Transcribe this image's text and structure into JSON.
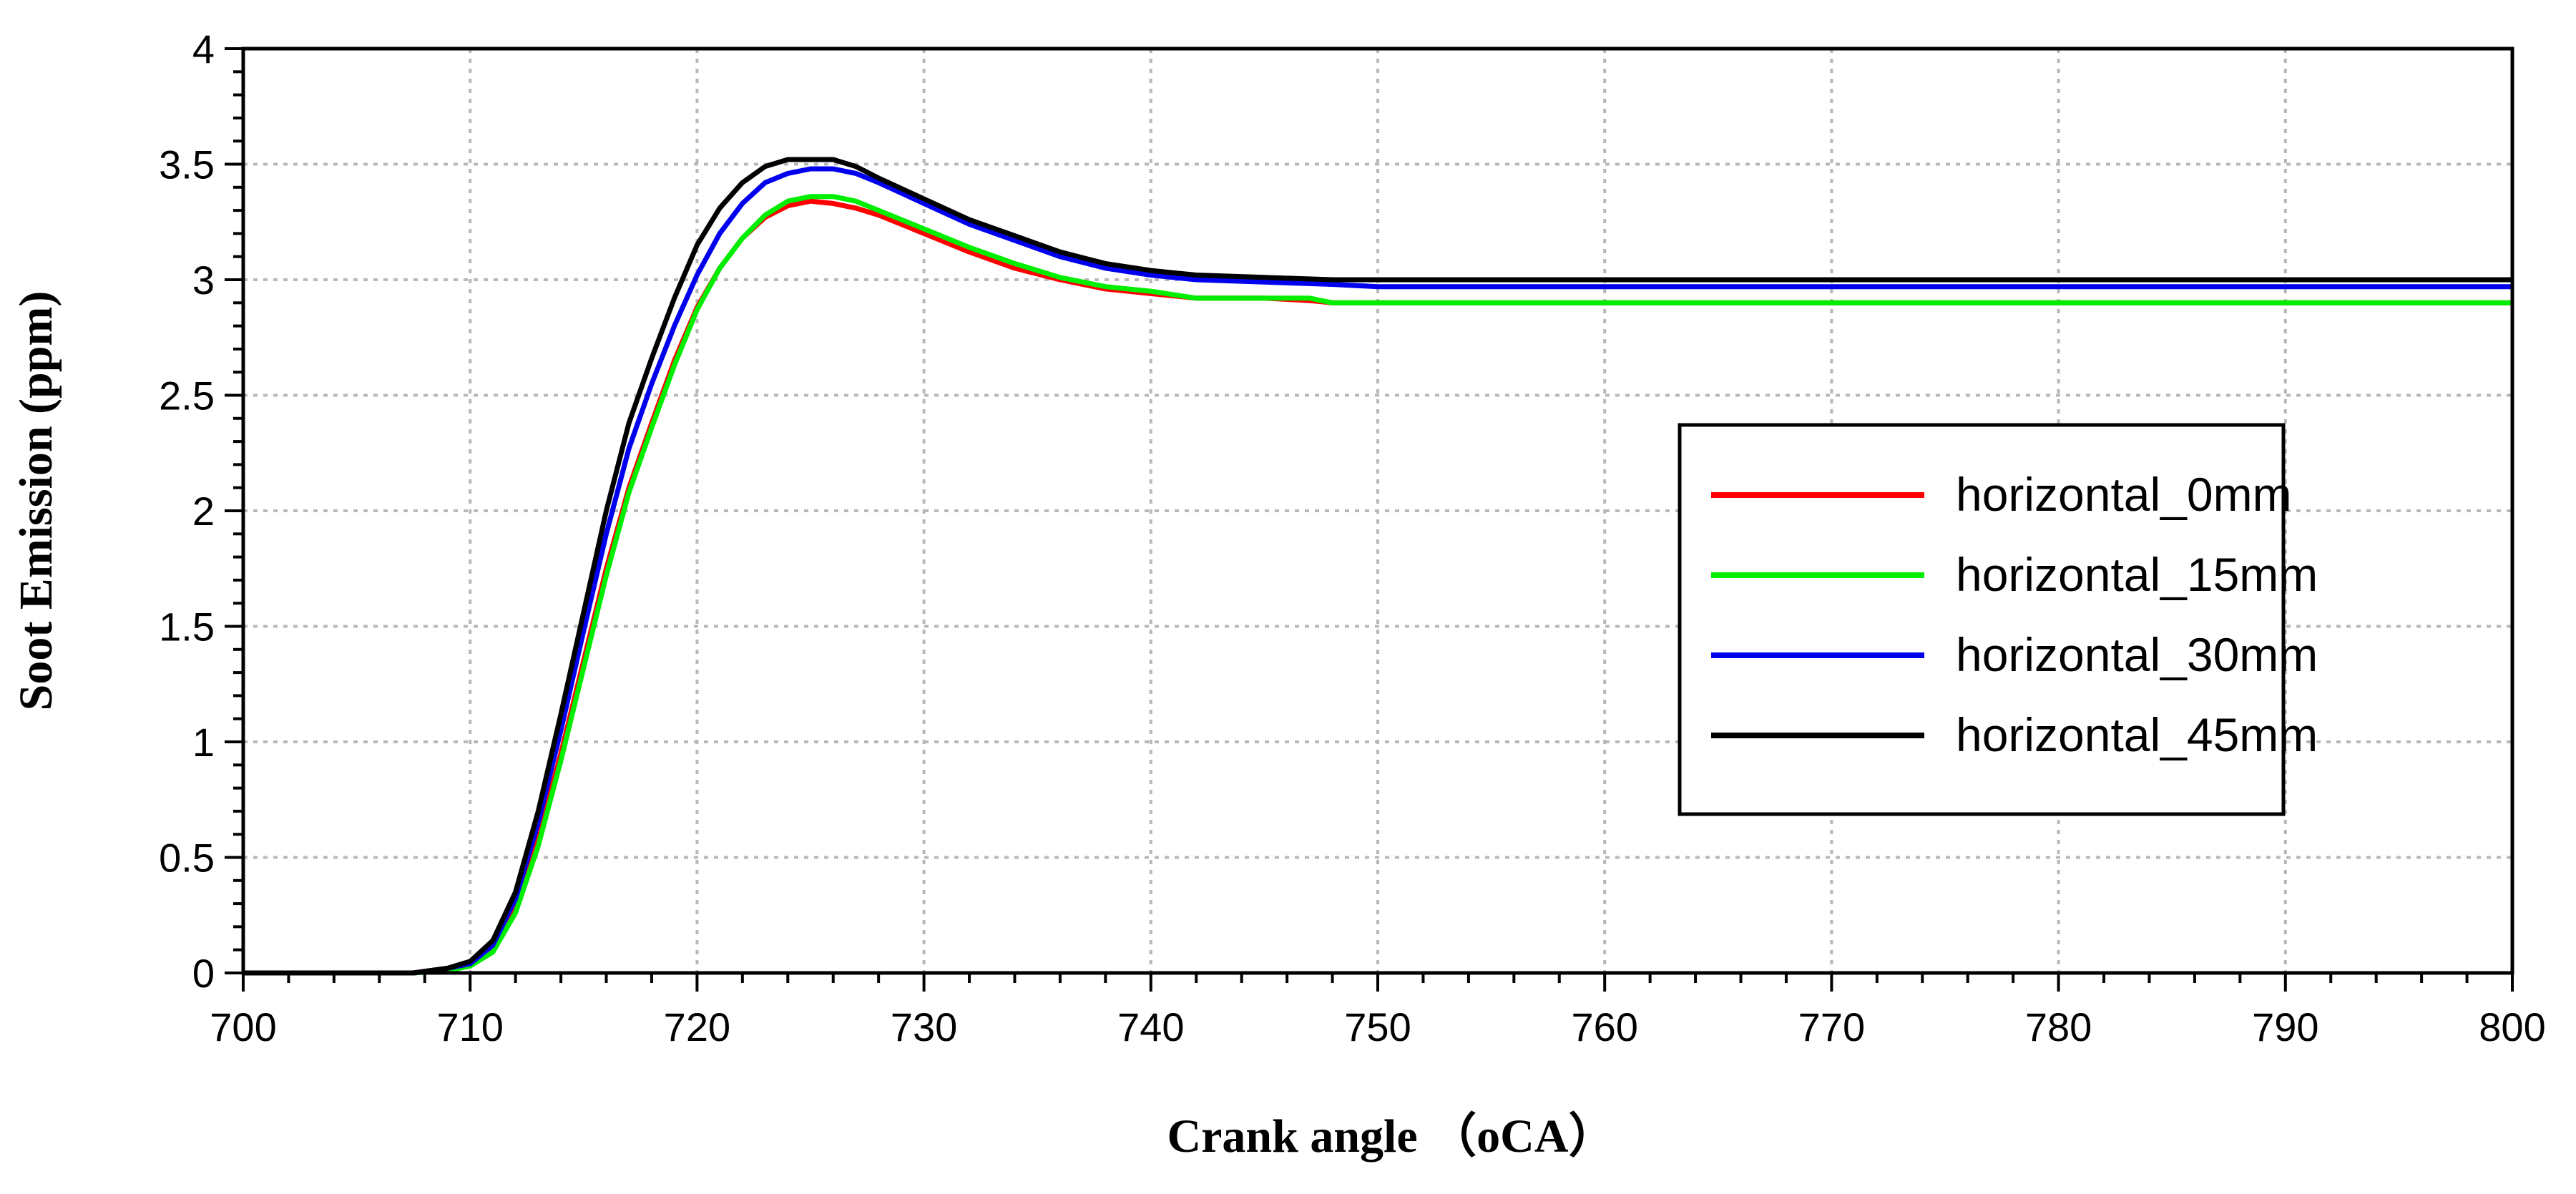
{
  "chart_data": {
    "type": "line",
    "title": "",
    "xlabel": "Crank angle （oCA）",
    "ylabel": "Soot Emission (ppm)",
    "xlim": [
      700,
      800
    ],
    "ylim": [
      0,
      4
    ],
    "xticks": [
      700,
      710,
      720,
      730,
      740,
      750,
      760,
      770,
      780,
      790,
      800
    ],
    "yticks": [
      0,
      0.5,
      1,
      1.5,
      2,
      2.5,
      3,
      3.5,
      4
    ],
    "xtick_labels": [
      "700",
      "710",
      "720",
      "730",
      "740",
      "750",
      "760",
      "770",
      "780",
      "790",
      "800"
    ],
    "ytick_labels": [
      "0",
      "0.5",
      "1",
      "1.5",
      "2",
      "2.5",
      "3",
      "3.5",
      "4"
    ],
    "grid": true,
    "legend_position": "center-right",
    "series": [
      {
        "name": "horizontal_0mm",
        "color": "#ff0000",
        "x": [
          700,
          707.5,
          709,
          710,
          711,
          712,
          713,
          714,
          715,
          716,
          717,
          718,
          719,
          720,
          721,
          722,
          723,
          724,
          725,
          726,
          727,
          728,
          730,
          732,
          734,
          736,
          738,
          740,
          742,
          745,
          747,
          748,
          750,
          800
        ],
        "y": [
          0,
          0,
          0.02,
          0.04,
          0.1,
          0.28,
          0.58,
          0.95,
          1.35,
          1.75,
          2.1,
          2.38,
          2.65,
          2.88,
          3.05,
          3.18,
          3.27,
          3.32,
          3.34,
          3.33,
          3.31,
          3.28,
          3.2,
          3.12,
          3.05,
          3.0,
          2.96,
          2.94,
          2.92,
          2.92,
          2.91,
          2.9,
          2.9,
          2.9
        ]
      },
      {
        "name": "horizontal_15mm",
        "color": "#00ee00",
        "x": [
          700,
          707.5,
          709,
          710,
          711,
          712,
          713,
          714,
          715,
          716,
          717,
          718,
          719,
          720,
          721,
          722,
          723,
          724,
          725,
          726,
          727,
          728,
          730,
          732,
          734,
          736,
          738,
          740,
          742,
          745,
          747,
          748,
          750,
          800
        ],
        "y": [
          0,
          0,
          0.01,
          0.03,
          0.09,
          0.26,
          0.55,
          0.92,
          1.32,
          1.72,
          2.08,
          2.36,
          2.63,
          2.87,
          3.05,
          3.18,
          3.28,
          3.34,
          3.36,
          3.36,
          3.34,
          3.3,
          3.22,
          3.14,
          3.07,
          3.01,
          2.97,
          2.95,
          2.92,
          2.92,
          2.92,
          2.9,
          2.9,
          2.9
        ]
      },
      {
        "name": "horizontal_30mm",
        "color": "#0000ee",
        "x": [
          700,
          707.5,
          709,
          710,
          711,
          712,
          713,
          714,
          715,
          716,
          717,
          718,
          719,
          720,
          721,
          722,
          723,
          724,
          725,
          726,
          727,
          728,
          730,
          732,
          734,
          736,
          738,
          740,
          742,
          745,
          748,
          750,
          800
        ],
        "y": [
          0,
          0,
          0.02,
          0.04,
          0.12,
          0.32,
          0.65,
          1.05,
          1.48,
          1.9,
          2.27,
          2.55,
          2.8,
          3.02,
          3.2,
          3.33,
          3.42,
          3.46,
          3.48,
          3.48,
          3.46,
          3.42,
          3.33,
          3.24,
          3.17,
          3.1,
          3.05,
          3.02,
          3.0,
          2.99,
          2.98,
          2.97,
          2.97
        ]
      },
      {
        "name": "horizontal_45mm",
        "color": "#000000",
        "x": [
          700,
          707.5,
          709,
          710,
          711,
          712,
          713,
          714,
          715,
          716,
          717,
          718,
          719,
          720,
          721,
          722,
          723,
          724,
          725,
          726,
          727,
          728,
          730,
          732,
          734,
          736,
          738,
          740,
          742,
          745,
          748,
          750,
          800
        ],
        "y": [
          0,
          0,
          0.02,
          0.05,
          0.14,
          0.35,
          0.7,
          1.12,
          1.56,
          2.0,
          2.38,
          2.66,
          2.92,
          3.15,
          3.31,
          3.42,
          3.49,
          3.52,
          3.52,
          3.52,
          3.49,
          3.44,
          3.35,
          3.26,
          3.19,
          3.12,
          3.07,
          3.04,
          3.02,
          3.01,
          3.0,
          3.0,
          3.0
        ]
      }
    ]
  }
}
